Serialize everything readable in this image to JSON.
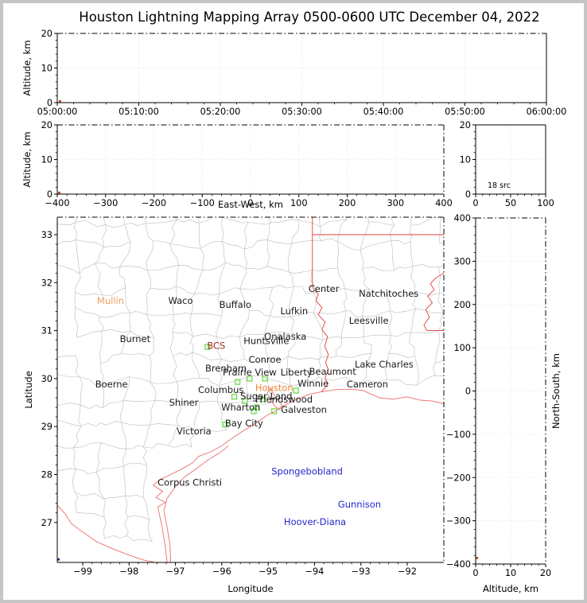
{
  "title": "Houston Lightning Mapping Array 0500-0600 UTC December 04, 2022",
  "figure": {
    "background": "#ffffff",
    "frame_color": "#c5c5c5"
  },
  "colors": {
    "county_line": "#c4c4c4",
    "state_border": "#e43c3c",
    "coastline": "#ef6b6b",
    "station_marker": "#63d93e",
    "city_default": "#1a1a1a",
    "grid_line": "#e3e3e3",
    "source_dot": "#cc3a1a",
    "map_source_dot": "#232a8f"
  },
  "chart_data": [
    {
      "id": "time_height",
      "type": "scatter",
      "xlabel": "",
      "ylabel": "Altitude, km",
      "xlim": [
        0,
        3600
      ],
      "ylim": [
        0,
        20
      ],
      "xticks": [
        {
          "v": 0,
          "l": "05:00:00"
        },
        {
          "v": 600,
          "l": "05:10:00"
        },
        {
          "v": 1200,
          "l": "05:20:00"
        },
        {
          "v": 1800,
          "l": "05:30:00"
        },
        {
          "v": 2400,
          "l": "05:40:00"
        },
        {
          "v": 3000,
          "l": "05:50:00"
        },
        {
          "v": 3600,
          "l": "06:00:00"
        }
      ],
      "yticks": [
        {
          "v": 0,
          "l": "0"
        },
        {
          "v": 10,
          "l": "10"
        },
        {
          "v": 20,
          "l": "20"
        }
      ],
      "minor_divisions": 5,
      "points": [
        {
          "x": 20,
          "y": 0.4,
          "color": "#cc3a1a"
        }
      ]
    },
    {
      "id": "ew_height",
      "type": "scatter",
      "xlabel": "East-West, km",
      "ylabel": "Altitude, km",
      "xlim": [
        -400,
        400
      ],
      "ylim": [
        0,
        20
      ],
      "xticks": [
        {
          "v": -400,
          "l": "−400"
        },
        {
          "v": -300,
          "l": "−300"
        },
        {
          "v": -200,
          "l": "−200"
        },
        {
          "v": -100,
          "l": "−100"
        },
        {
          "v": 0,
          "l": "0"
        },
        {
          "v": 100,
          "l": "100"
        },
        {
          "v": 200,
          "l": "200"
        },
        {
          "v": 300,
          "l": "300"
        },
        {
          "v": 400,
          "l": "400"
        }
      ],
      "yticks": [
        {
          "v": 0,
          "l": "0"
        },
        {
          "v": 10,
          "l": "10"
        },
        {
          "v": 20,
          "l": "20"
        }
      ],
      "minor_divisions": 5,
      "points": [
        {
          "x": -396,
          "y": 0.4,
          "color": "#cc3a1a"
        }
      ]
    },
    {
      "id": "src_histogram",
      "type": "scatter",
      "annotation": "18 src",
      "xlabel": "",
      "ylabel": "",
      "xlim": [
        0,
        100
      ],
      "ylim": [
        0,
        20
      ],
      "xticks": [
        {
          "v": 0,
          "l": "0"
        },
        {
          "v": 50,
          "l": "50"
        },
        {
          "v": 100,
          "l": "100"
        }
      ],
      "yticks": [
        {
          "v": 0,
          "l": "0"
        },
        {
          "v": 10,
          "l": "10"
        },
        {
          "v": 20,
          "l": "20"
        }
      ],
      "minor_divisions": 5,
      "points": []
    },
    {
      "id": "plan_view_map",
      "type": "scatter",
      "xlabel": "Longitude",
      "ylabel": "Latitude",
      "xlim": [
        -99.549,
        -91.211
      ],
      "ylim": [
        26.167,
        33.365
      ],
      "xticks": [
        {
          "v": -99,
          "l": "−99"
        },
        {
          "v": -98,
          "l": "−98"
        },
        {
          "v": -97,
          "l": "−97"
        },
        {
          "v": -96,
          "l": "−96"
        },
        {
          "v": -95,
          "l": "−95"
        },
        {
          "v": -94,
          "l": "−94"
        },
        {
          "v": -93,
          "l": "−93"
        },
        {
          "v": -92,
          "l": "−92"
        }
      ],
      "yticks": [
        {
          "v": 27,
          "l": "27"
        },
        {
          "v": 28,
          "l": "28"
        },
        {
          "v": 29,
          "l": "29"
        },
        {
          "v": 30,
          "l": "30"
        },
        {
          "v": 31,
          "l": "31"
        },
        {
          "v": 32,
          "l": "32"
        },
        {
          "v": 33,
          "l": "33"
        }
      ],
      "minor_divisions": 5,
      "points": [
        {
          "lon": -99.52,
          "lat": 26.23,
          "color": "#232a8f"
        }
      ],
      "cities": [
        {
          "name": "Mullin",
          "lon": -98.4,
          "lat": 31.62,
          "color": "#eda05f"
        },
        {
          "name": "Waco",
          "lon": -96.89,
          "lat": 31.62
        },
        {
          "name": "Buffalo",
          "lon": -95.71,
          "lat": 31.54
        },
        {
          "name": "Lufkin",
          "lon": -94.44,
          "lat": 31.41
        },
        {
          "name": "Center",
          "lon": -93.8,
          "lat": 31.87
        },
        {
          "name": "Natchitoches",
          "lon": -92.4,
          "lat": 31.77
        },
        {
          "name": "Leesville",
          "lon": -92.83,
          "lat": 31.21
        },
        {
          "name": "Burnet",
          "lon": -97.87,
          "lat": 30.83
        },
        {
          "name": "BCS",
          "lon": -96.12,
          "lat": 30.69,
          "color": "#a03028"
        },
        {
          "name": "Huntsville",
          "lon": -95.04,
          "lat": 30.79
        },
        {
          "name": "Onalaska",
          "lon": -94.63,
          "lat": 30.88
        },
        {
          "name": "Conroe",
          "lon": -95.07,
          "lat": 30.4
        },
        {
          "name": "Brenham",
          "lon": -95.91,
          "lat": 30.21
        },
        {
          "name": "Prairie View",
          "lon": -95.4,
          "lat": 30.13
        },
        {
          "name": "Liberty",
          "lon": -94.39,
          "lat": 30.13
        },
        {
          "name": "Beaumont",
          "lon": -93.61,
          "lat": 30.15
        },
        {
          "name": "Winnie",
          "lon": -94.03,
          "lat": 29.9
        },
        {
          "name": "Cameron",
          "lon": -92.86,
          "lat": 29.88
        },
        {
          "name": "Lake Charles",
          "lon": -92.5,
          "lat": 30.3
        },
        {
          "name": "Boerne",
          "lon": -98.38,
          "lat": 29.88
        },
        {
          "name": "Columbus",
          "lon": -96.02,
          "lat": 29.77
        },
        {
          "name": "Houston",
          "lon": -94.87,
          "lat": 29.81,
          "color": "#ef8632"
        },
        {
          "name": "Sugar Land",
          "lon": -95.04,
          "lat": 29.63
        },
        {
          "name": "Friendswood",
          "lon": -94.66,
          "lat": 29.57
        },
        {
          "name": "Wharton",
          "lon": -95.59,
          "lat": 29.4
        },
        {
          "name": "Galveston",
          "lon": -94.23,
          "lat": 29.35
        },
        {
          "name": "Shiner",
          "lon": -96.82,
          "lat": 29.5
        },
        {
          "name": "Bay City",
          "lon": -95.52,
          "lat": 29.07
        },
        {
          "name": "Victoria",
          "lon": -96.6,
          "lat": 28.9
        },
        {
          "name": "Corpus Christi",
          "lon": -96.69,
          "lat": 27.83
        },
        {
          "name": "Spongebobland",
          "lon": -94.16,
          "lat": 28.07,
          "color": "#2424cc"
        },
        {
          "name": "Gunnison",
          "lon": -93.03,
          "lat": 27.38,
          "color": "#2424cc"
        },
        {
          "name": "Hoover-Diana",
          "lon": -93.99,
          "lat": 27.01,
          "color": "#2424cc"
        }
      ],
      "stations": [
        [
          -96.31,
          30.66
        ],
        [
          -95.66,
          29.93
        ],
        [
          -95.4,
          30.0
        ],
        [
          -95.07,
          30.0
        ],
        [
          -95.73,
          29.62
        ],
        [
          -95.5,
          29.53
        ],
        [
          -95.11,
          29.57
        ],
        [
          -95.25,
          29.4
        ],
        [
          -95.31,
          29.32
        ],
        [
          -94.87,
          29.32
        ],
        [
          -94.4,
          29.75
        ],
        [
          -95.93,
          29.04
        ]
      ]
    },
    {
      "id": "ns_height",
      "type": "scatter",
      "xlabel": "Altitude, km",
      "ylabel": "North-South, km",
      "xlim": [
        0,
        20
      ],
      "ylim": [
        -400,
        400
      ],
      "xticks": [
        {
          "v": 0,
          "l": "0"
        },
        {
          "v": 10,
          "l": "10"
        },
        {
          "v": 20,
          "l": "20"
        }
      ],
      "yticks": [
        {
          "v": -400,
          "l": "−400"
        },
        {
          "v": -300,
          "l": "−300"
        },
        {
          "v": -200,
          "l": "−200"
        },
        {
          "v": -100,
          "l": "−100"
        },
        {
          "v": 0,
          "l": "0"
        },
        {
          "v": 100,
          "l": "100"
        },
        {
          "v": 200,
          "l": "200"
        },
        {
          "v": 300,
          "l": "300"
        },
        {
          "v": 400,
          "l": "400"
        }
      ],
      "minor_divisions": 5,
      "points": [
        {
          "x": 0.4,
          "y": -386,
          "color": "#cc3a1a"
        }
      ]
    }
  ],
  "map_features": [
    {
      "name": "coast-main",
      "kind": "coast",
      "pts": [
        [
          -97.18,
          26.17
        ],
        [
          -97.22,
          26.5
        ],
        [
          -97.28,
          26.85
        ],
        [
          -97.33,
          27.1
        ],
        [
          -97.38,
          27.32
        ],
        [
          -97.22,
          27.42
        ],
        [
          -97.42,
          27.52
        ],
        [
          -97.28,
          27.65
        ],
        [
          -97.48,
          27.78
        ],
        [
          -97.32,
          27.9
        ],
        [
          -97.1,
          28.0
        ],
        [
          -96.85,
          28.12
        ],
        [
          -96.62,
          28.25
        ],
        [
          -96.5,
          28.38
        ],
        [
          -96.22,
          28.48
        ],
        [
          -96.0,
          28.6
        ],
        [
          -95.68,
          28.82
        ],
        [
          -95.3,
          29.05
        ],
        [
          -95.0,
          29.25
        ],
        [
          -94.88,
          29.3
        ],
        [
          -94.7,
          29.42
        ],
        [
          -94.42,
          29.55
        ],
        [
          -94.12,
          29.67
        ],
        [
          -93.88,
          29.72
        ],
        [
          -93.55,
          29.77
        ],
        [
          -93.2,
          29.78
        ],
        [
          -92.95,
          29.75
        ],
        [
          -92.6,
          29.6
        ],
        [
          -92.3,
          29.57
        ],
        [
          -92.0,
          29.62
        ],
        [
          -91.72,
          29.55
        ],
        [
          -91.45,
          29.53
        ],
        [
          -91.2,
          29.47
        ]
      ]
    },
    {
      "name": "barrier-island",
      "kind": "coast",
      "pts": [
        [
          -97.1,
          26.17
        ],
        [
          -97.12,
          26.55
        ],
        [
          -97.18,
          26.9
        ],
        [
          -97.25,
          27.25
        ],
        [
          -97.18,
          27.5
        ],
        [
          -97.0,
          27.75
        ],
        [
          -96.8,
          27.95
        ],
        [
          -96.55,
          28.12
        ],
        [
          -96.3,
          28.3
        ],
        [
          -96.05,
          28.45
        ],
        [
          -95.85,
          28.6
        ]
      ]
    },
    {
      "name": "galveston-bay",
      "kind": "coast",
      "pts": [
        [
          -95.02,
          29.7
        ],
        [
          -94.95,
          29.55
        ],
        [
          -94.85,
          29.42
        ],
        [
          -94.75,
          29.35
        ],
        [
          -94.7,
          29.45
        ],
        [
          -94.8,
          29.55
        ],
        [
          -94.9,
          29.7
        ],
        [
          -94.95,
          29.8
        ],
        [
          -95.02,
          29.7
        ]
      ]
    },
    {
      "name": "rio-grande",
      "kind": "coast",
      "pts": [
        [
          -99.55,
          27.36
        ],
        [
          -99.38,
          27.18
        ],
        [
          -99.25,
          26.98
        ],
        [
          -99.0,
          26.8
        ],
        [
          -98.7,
          26.6
        ],
        [
          -98.35,
          26.45
        ],
        [
          -98.0,
          26.32
        ],
        [
          -97.7,
          26.22
        ],
        [
          -97.45,
          26.17
        ],
        [
          -97.18,
          26.1
        ]
      ]
    },
    {
      "name": "tx-la-border",
      "kind": "state",
      "pts": [
        [
          -94.045,
          33.37
        ],
        [
          -94.045,
          31.9
        ]
      ]
    },
    {
      "name": "sabine-river",
      "kind": "state",
      "pts": [
        [
          -94.045,
          31.9
        ],
        [
          -93.92,
          31.76
        ],
        [
          -93.97,
          31.62
        ],
        [
          -93.84,
          31.48
        ],
        [
          -93.92,
          31.33
        ],
        [
          -93.77,
          31.18
        ],
        [
          -93.84,
          31.02
        ],
        [
          -93.72,
          30.87
        ],
        [
          -93.78,
          30.67
        ],
        [
          -93.7,
          30.5
        ],
        [
          -93.76,
          30.34
        ],
        [
          -93.7,
          30.18
        ],
        [
          -93.77,
          30.03
        ],
        [
          -93.72,
          29.88
        ],
        [
          -93.85,
          29.72
        ]
      ]
    },
    {
      "name": "parallel-33",
      "kind": "state",
      "pts": [
        [
          -94.045,
          33.0
        ],
        [
          -91.2,
          33.0
        ]
      ]
    },
    {
      "name": "mississippi-river",
      "kind": "state",
      "pts": [
        [
          -91.21,
          32.2
        ],
        [
          -91.38,
          32.1
        ],
        [
          -91.5,
          31.98
        ],
        [
          -91.42,
          31.85
        ],
        [
          -91.56,
          31.72
        ],
        [
          -91.46,
          31.58
        ],
        [
          -91.6,
          31.44
        ],
        [
          -91.52,
          31.28
        ],
        [
          -91.64,
          31.12
        ],
        [
          -91.58,
          31.0
        ]
      ]
    },
    {
      "name": "parallel-31",
      "kind": "state",
      "pts": [
        [
          -91.58,
          31.0
        ],
        [
          -91.2,
          31.0
        ]
      ]
    }
  ]
}
